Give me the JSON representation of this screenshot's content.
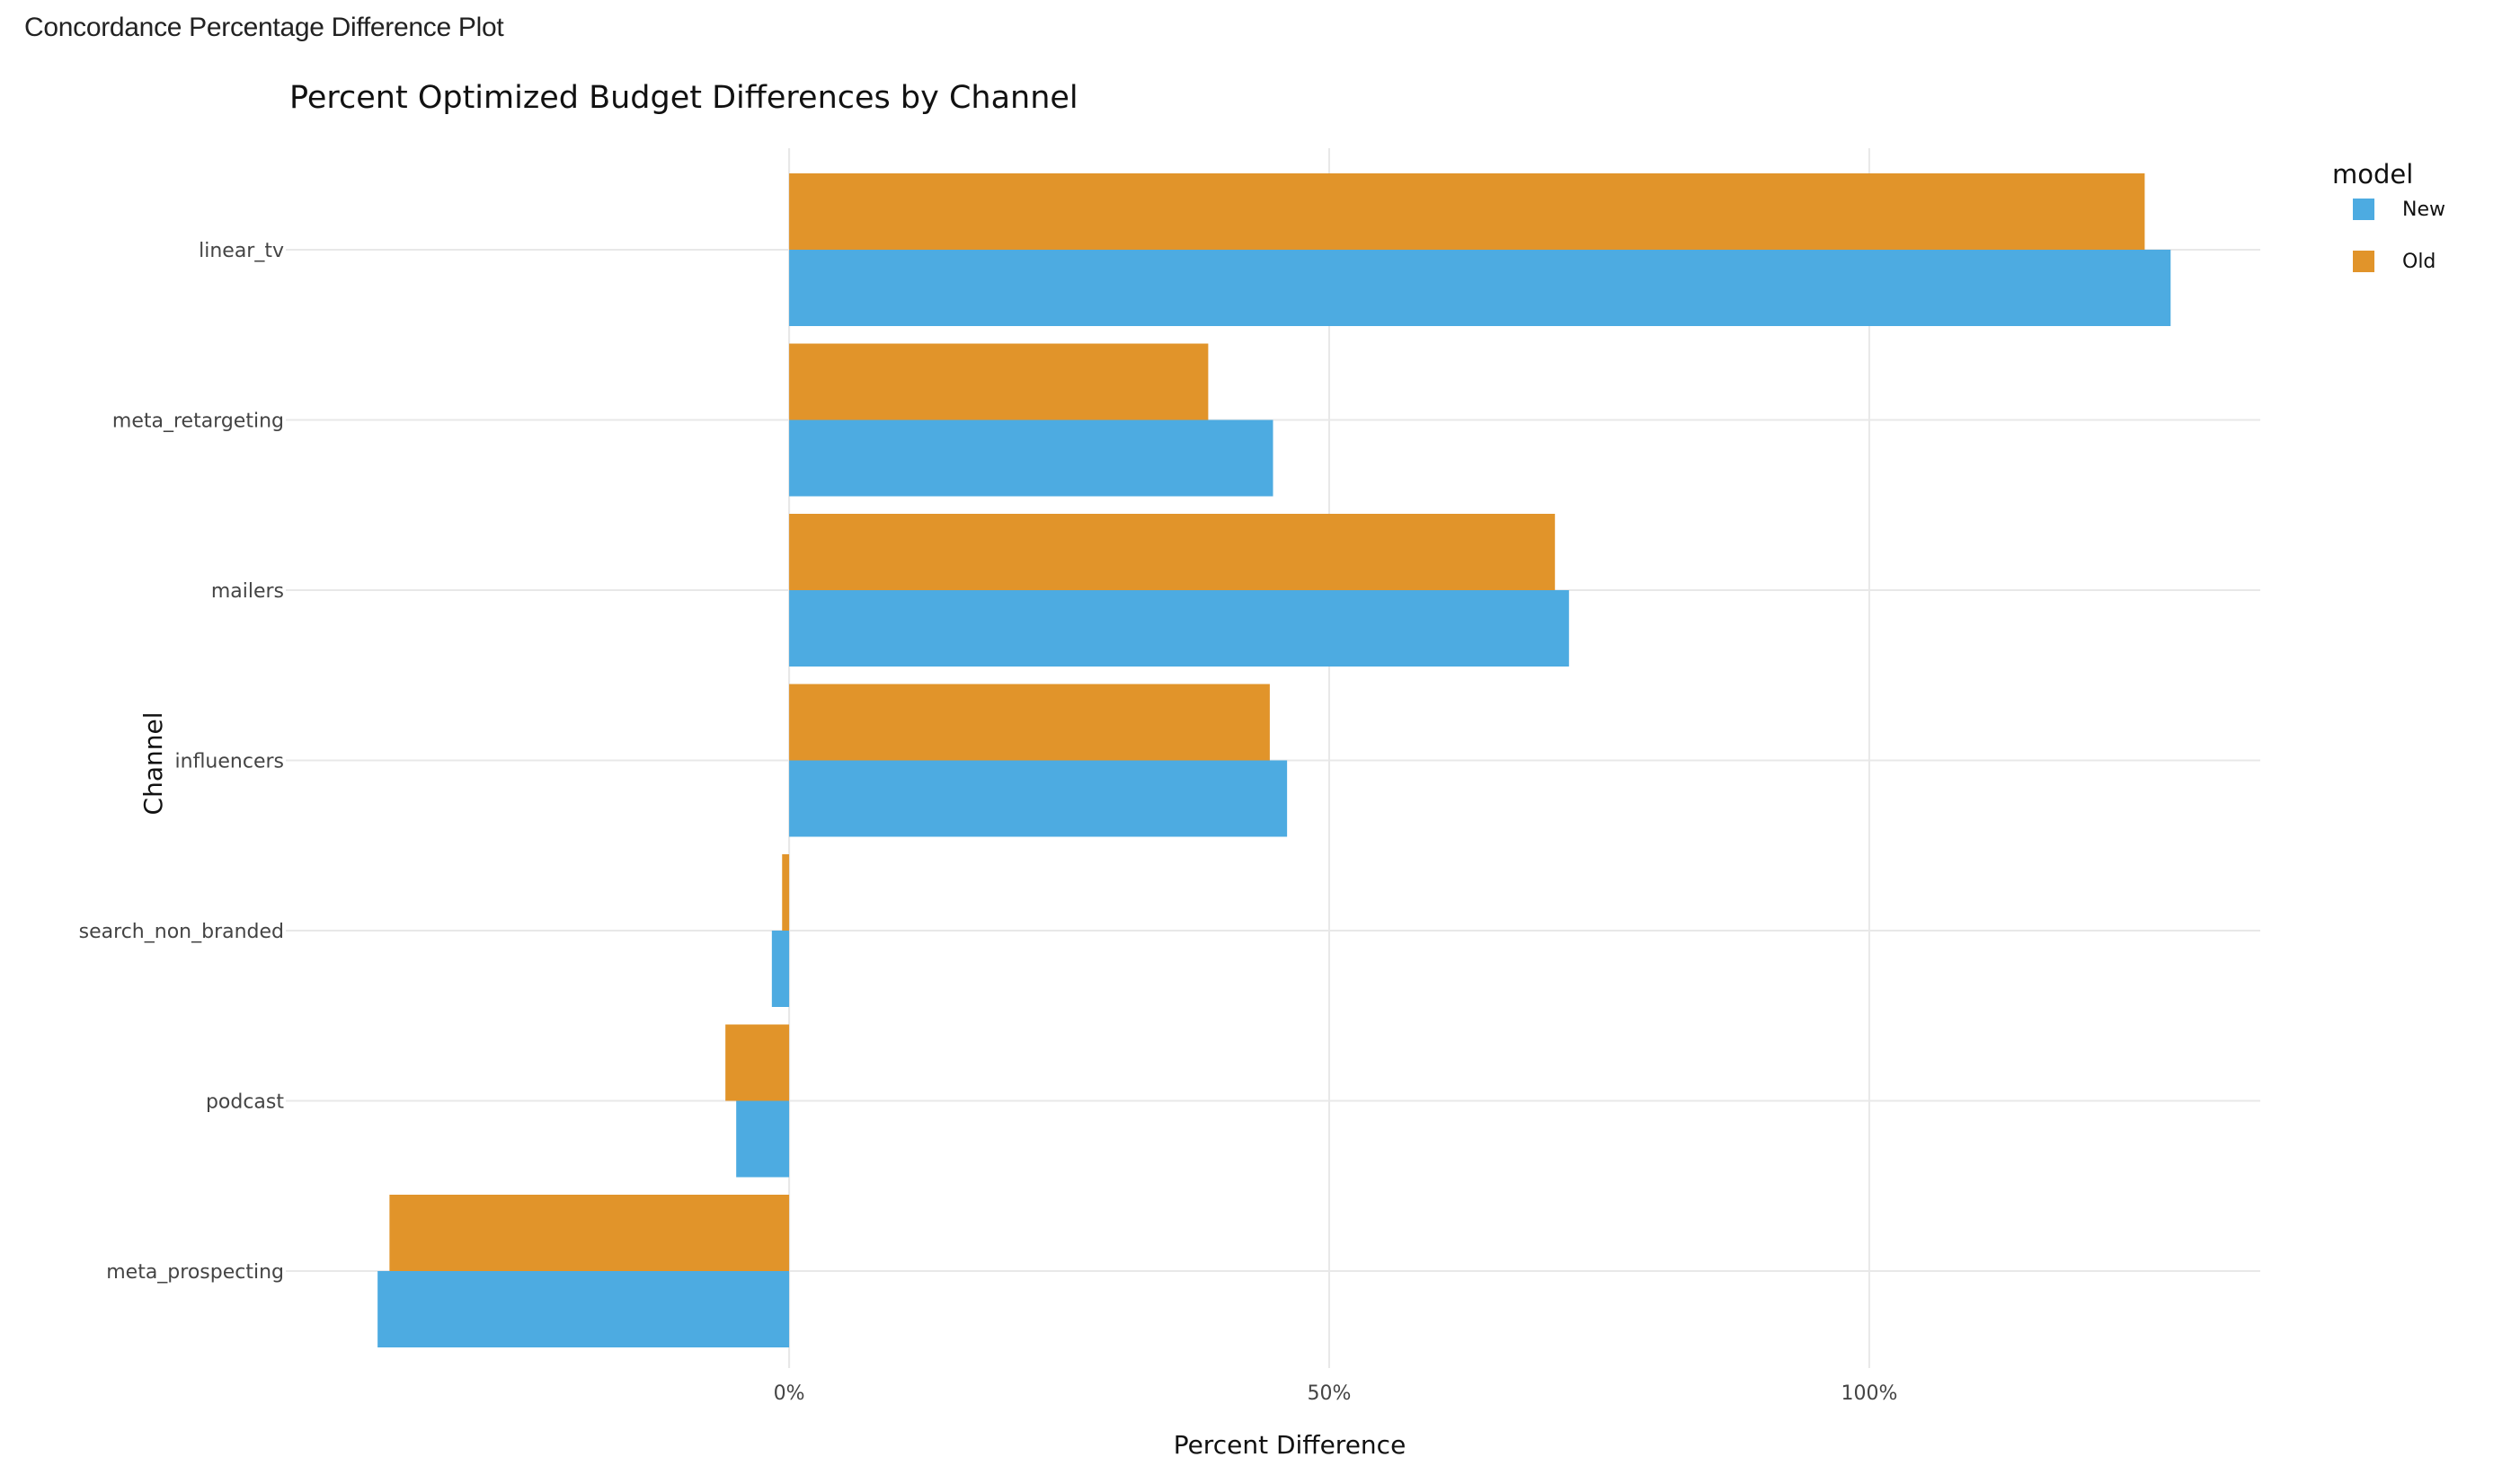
{
  "page": {
    "title": "Concordance Percentage Difference Plot"
  },
  "chart_data": {
    "type": "bar",
    "orientation": "horizontal",
    "title": "Percent Optimized Budget Differences by Channel",
    "xlabel": "Percent Difference",
    "ylabel": "Channel",
    "xlim": [
      -46.6,
      136.2
    ],
    "x_ticks": [
      0,
      50,
      100
    ],
    "x_tick_labels": [
      "0%",
      "50%",
      "100%"
    ],
    "grid": true,
    "categories": [
      "linear_tv",
      "meta_retargeting",
      "mailers",
      "influencers",
      "search_non_branded",
      "podcast",
      "meta_prospecting"
    ],
    "series": [
      {
        "name": "New",
        "color": "#4DABE1",
        "values": [
          127.9,
          44.8,
          72.2,
          46.1,
          -1.6,
          -4.9,
          -38.1
        ]
      },
      {
        "name": "Old",
        "color": "#E1942A",
        "values": [
          125.5,
          38.8,
          70.9,
          44.5,
          -0.65,
          -5.9,
          -37.0
        ]
      }
    ],
    "legend": {
      "title": "model",
      "position": "top-right",
      "entries": [
        {
          "label": "New",
          "color": "#4DABE1"
        },
        {
          "label": "Old",
          "color": "#E1942A"
        }
      ]
    }
  }
}
